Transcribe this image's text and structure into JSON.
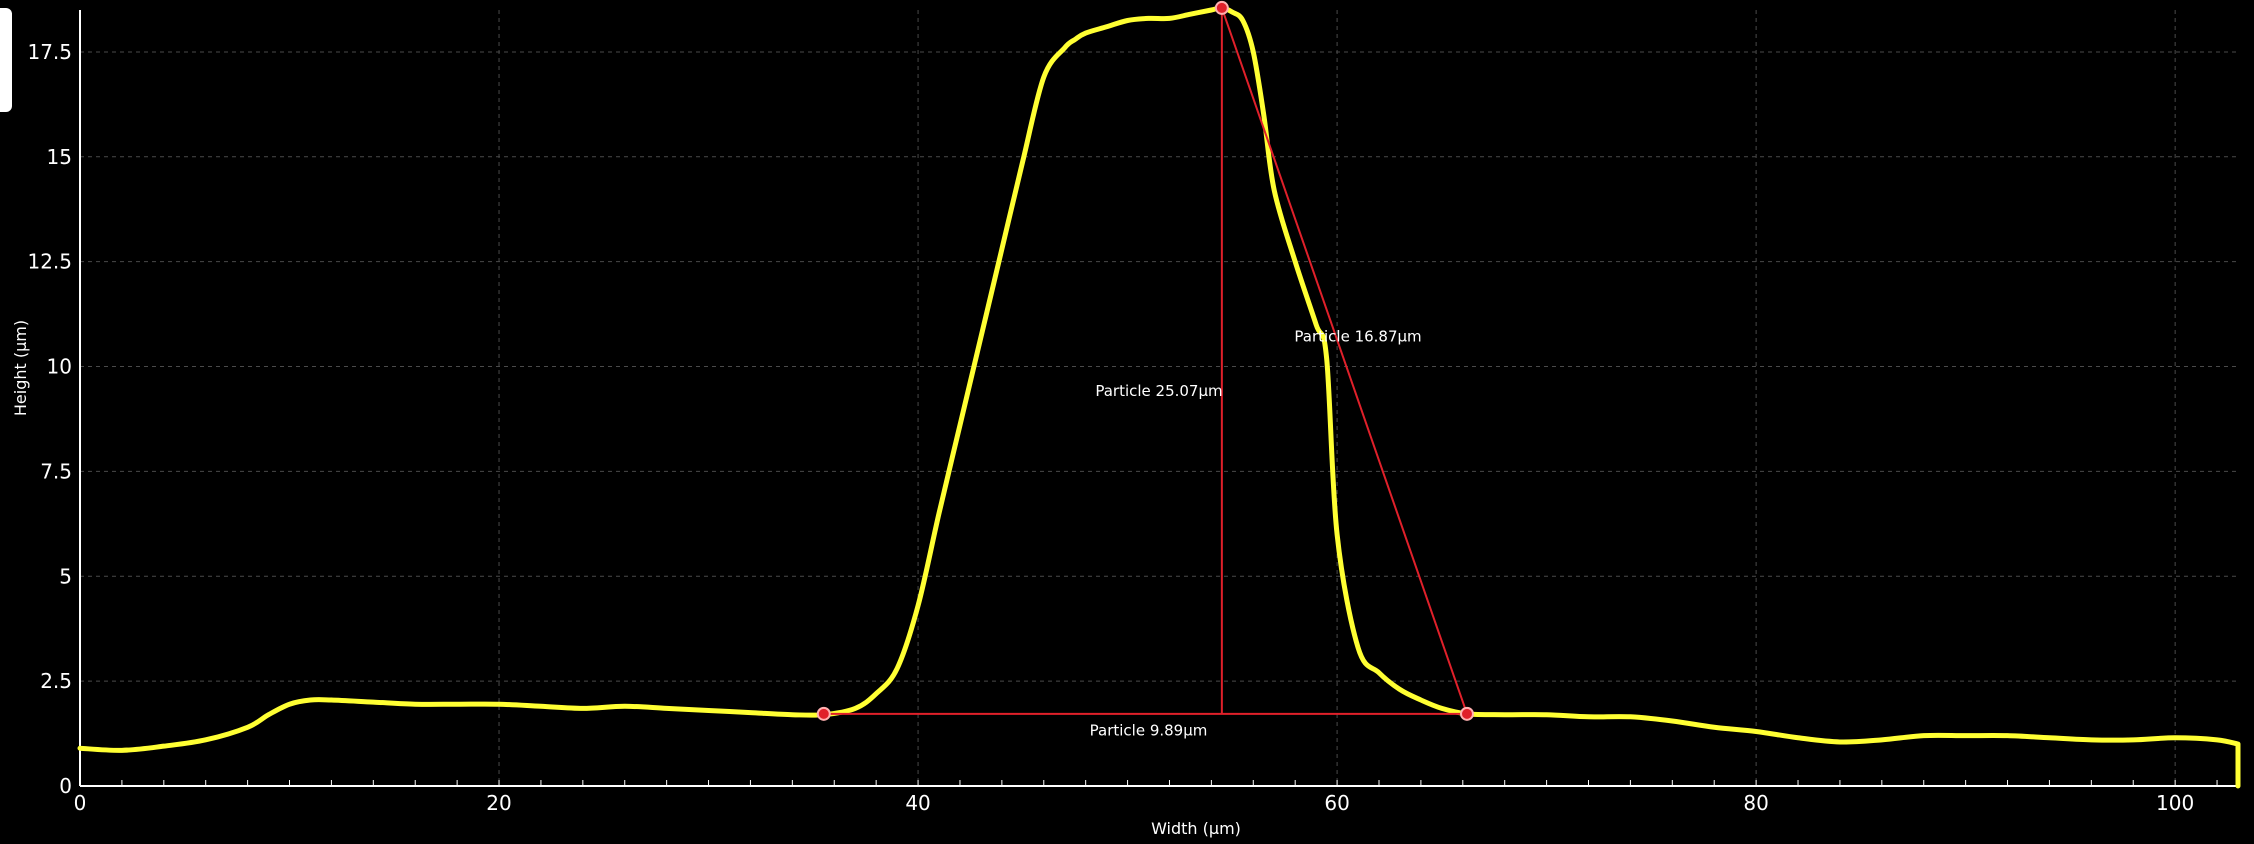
{
  "theme": {
    "background": "#000000",
    "curve_color": "#ffff33",
    "annotation_color": "#e0202a",
    "grid_color": "#4a4a4a",
    "axis_color": "#ffffff",
    "text_color": "#ffffff"
  },
  "chart_data": {
    "type": "line",
    "title": "",
    "xlabel": "Width (µm)",
    "ylabel": "Height (µm)",
    "xlim": [
      0,
      103
    ],
    "ylim": [
      0,
      18.5
    ],
    "x_ticks": [
      0,
      20,
      40,
      60,
      80,
      100
    ],
    "y_ticks": [
      0,
      2.5,
      5,
      7.5,
      10,
      12.5,
      15,
      17.5
    ],
    "x_tick_labels": [
      "0",
      "20",
      "40",
      "60",
      "80",
      "100"
    ],
    "y_tick_labels": [
      "0",
      "2.5",
      "5",
      "7.5",
      "10",
      "12.5",
      "15",
      "17.5"
    ],
    "grid": true,
    "series": [
      {
        "x": [
          0,
          2,
          4,
          6,
          8,
          9,
          10,
          11,
          12,
          14,
          16,
          18,
          20,
          22,
          24,
          26,
          28,
          30,
          32,
          34,
          35.5,
          37,
          38,
          39,
          40,
          41,
          42,
          43,
          44,
          45,
          46,
          47,
          47.5,
          48,
          49,
          50,
          51,
          52,
          53,
          54,
          54.5,
          55,
          55.5,
          56,
          56.5,
          57,
          58,
          59,
          59.5,
          60,
          61,
          62,
          63,
          64,
          65,
          66.2,
          68,
          70,
          72,
          74,
          76,
          78,
          80,
          82,
          84,
          86,
          88,
          90,
          92,
          94,
          96,
          98,
          100,
          102,
          103
        ],
        "y": [
          0.9,
          0.85,
          0.95,
          1.1,
          1.4,
          1.7,
          1.95,
          2.05,
          2.05,
          2.0,
          1.95,
          1.95,
          1.95,
          1.9,
          1.85,
          1.9,
          1.85,
          1.8,
          1.75,
          1.7,
          1.7,
          1.85,
          2.2,
          2.8,
          4.3,
          6.5,
          8.6,
          10.7,
          12.8,
          14.9,
          16.9,
          17.6,
          17.8,
          17.95,
          18.1,
          18.25,
          18.3,
          18.3,
          18.4,
          18.5,
          18.55,
          18.45,
          18.25,
          17.5,
          16.0,
          14.2,
          12.5,
          11.0,
          10.2,
          6.0,
          3.3,
          2.7,
          2.3,
          2.05,
          1.85,
          1.72,
          1.7,
          1.7,
          1.65,
          1.65,
          1.55,
          1.4,
          1.3,
          1.15,
          1.05,
          1.1,
          1.2,
          1.2,
          1.2,
          1.15,
          1.1,
          1.1,
          1.15,
          1.1,
          1.0
        ]
      }
    ],
    "annotations": [
      {
        "label": "Particle 25.07µm",
        "type": "vertical",
        "from": [
          54.5,
          1.72
        ],
        "to": [
          54.5,
          18.55
        ],
        "label_at": [
          51.5,
          9.3
        ]
      },
      {
        "label": "Particle 16.87µm",
        "type": "diagonal",
        "from": [
          54.5,
          18.55
        ],
        "to": [
          66.2,
          1.72
        ],
        "label_at": [
          61.0,
          10.6
        ]
      },
      {
        "label": "Particle 9.89µm",
        "type": "horizontal",
        "from": [
          35.5,
          1.72
        ],
        "to": [
          66.2,
          1.72
        ],
        "label_at": [
          51.0,
          1.2
        ]
      }
    ],
    "markers": [
      {
        "x": 35.5,
        "y": 1.72
      },
      {
        "x": 66.2,
        "y": 1.72
      },
      {
        "x": 54.5,
        "y": 18.55
      }
    ]
  }
}
